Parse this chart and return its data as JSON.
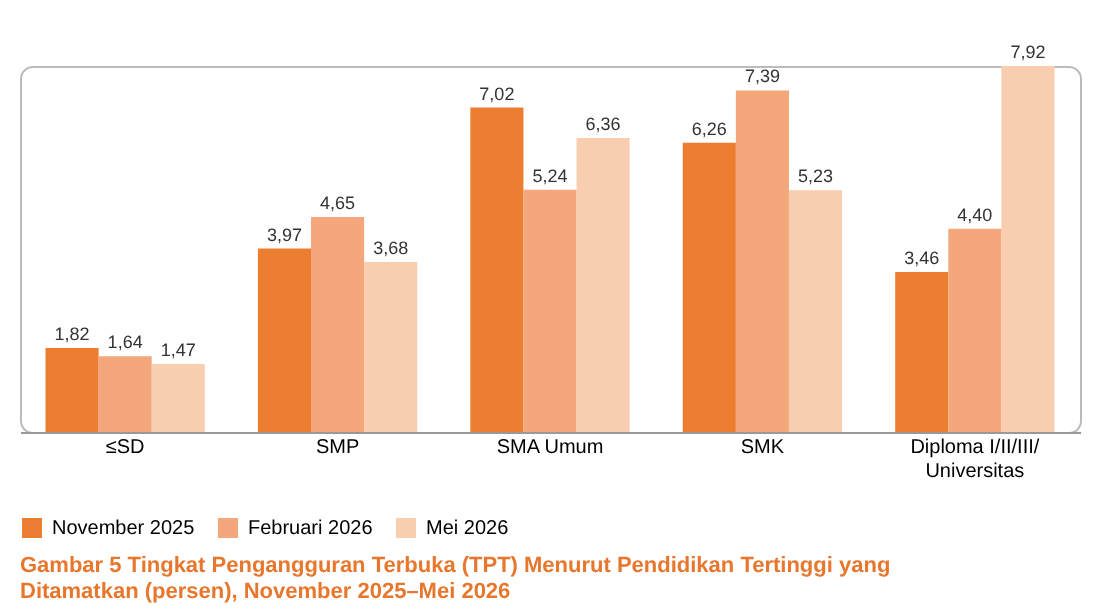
{
  "chart_data": {
    "type": "bar",
    "title": "Gambar 5  Tingkat Pengangguran Terbuka (TPT) Menurut Pendidikan Tertinggi yang\nDitamatkan (persen), November 2025–Mei 2026",
    "categories": [
      "≤SD",
      "SMP",
      "SMA Umum",
      "SMK",
      "Diploma I/II/III/\nUniversitas"
    ],
    "series": [
      {
        "name": "November 2025",
        "color": "#ed7d31",
        "values": [
          1.82,
          3.97,
          7.02,
          6.26,
          3.46
        ],
        "value_labels": [
          "1,82",
          "3,97",
          "7,02",
          "6,26",
          "3,46"
        ]
      },
      {
        "name": "Februari 2026",
        "color": "#f3a77a",
        "values": [
          1.64,
          4.65,
          5.24,
          7.39,
          4.4
        ],
        "value_labels": [
          "1,64",
          "4,65",
          "5,24",
          "7,39",
          "4,40"
        ]
      },
      {
        "name": "Mei 2026",
        "color": "#f9cdaf",
        "values": [
          1.47,
          3.68,
          6.36,
          5.23,
          7.92
        ],
        "value_labels": [
          "1,47",
          "3,68",
          "6,36",
          "5,23",
          "7,92"
        ]
      }
    ],
    "legend": "bottom",
    "grid": false
  }
}
